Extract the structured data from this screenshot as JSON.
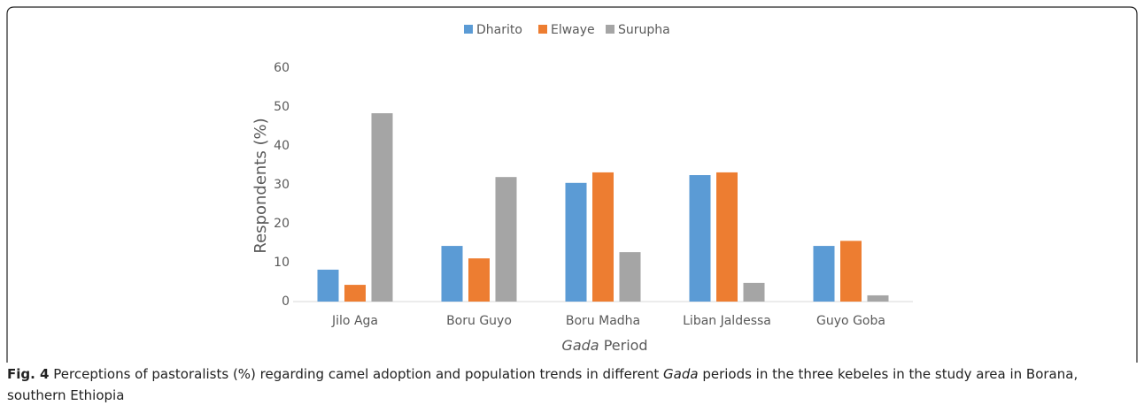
{
  "chart_data": {
    "type": "bar",
    "xlabel": [
      "Gada",
      "Period"
    ],
    "ylabel": "Respondents (%)",
    "categories": [
      "Jilo Aga",
      "Boru Guyo",
      "Boru Madha",
      "Liban Jaldessa",
      "Guyo Goba"
    ],
    "series": [
      {
        "name": "Dharito",
        "color": "#5b9bd5",
        "values": [
          8.2,
          14.3,
          30.5,
          32.5,
          14.3
        ]
      },
      {
        "name": "Elwaye",
        "color": "#ed7d31",
        "values": [
          4.3,
          11.1,
          33.2,
          33.2,
          15.6
        ]
      },
      {
        "name": "Surupha",
        "color": "#a5a5a5",
        "values": [
          48.4,
          32,
          12.7,
          4.8,
          1.6
        ]
      }
    ],
    "ylim": [
      0,
      60
    ],
    "yticks": [
      0,
      10,
      20,
      30,
      40,
      50,
      60
    ],
    "grid": false,
    "legend": "top"
  },
  "caption": {
    "label": "Fig. 4",
    "parts": [
      "Perceptions of pastoralists (%) regarding camel adoption and population trends in different ",
      "Gada",
      " periods in the three kebeles in the study area in Borana, southern Ethiopia"
    ]
  }
}
